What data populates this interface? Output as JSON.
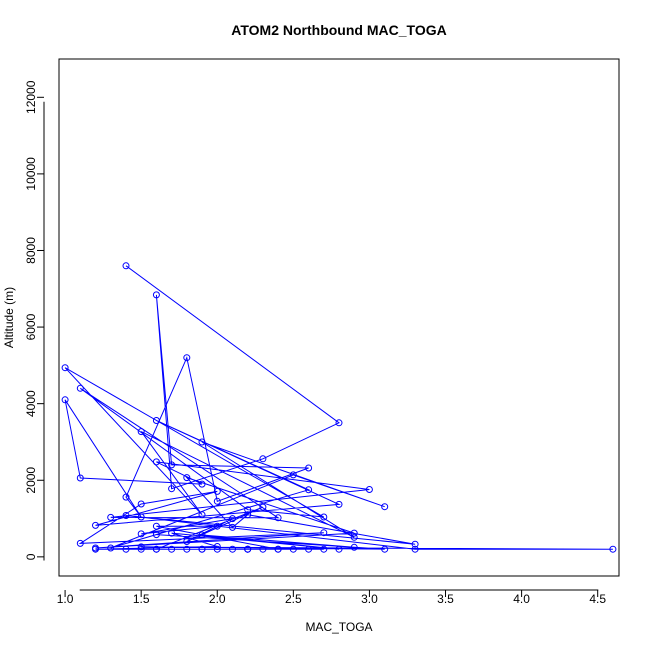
{
  "colors": {
    "series": "#0000ff",
    "axes": "#000000",
    "background": "#ffffff"
  },
  "chart_data": {
    "type": "scatter",
    "mode": "lines+markers",
    "marker": "open-circle",
    "title": "ATOM2 Northbound MAC_TOGA",
    "xlabel": "MAC_TOGA",
    "ylabel": "Altitude (m)",
    "xlim": [
      0.96,
      4.64
    ],
    "ylim": [
      -500,
      13000
    ],
    "xticks": [
      "1.0",
      "1.5",
      "2.0",
      "2.5",
      "3.0",
      "3.5",
      "4.0",
      "4.5"
    ],
    "yticks": [
      "0",
      "2000",
      "4000",
      "6000",
      "8000",
      "10000",
      "12000"
    ],
    "grid": false,
    "legend": "none",
    "series": [
      {
        "values": [
          [
            1.4,
            7600
          ],
          [
            2.8,
            3500
          ],
          [
            2.3,
            2560
          ],
          [
            1.7,
            1780
          ],
          [
            1.6,
            6840
          ],
          [
            1.7,
            2400
          ],
          [
            2.6,
            2320
          ],
          [
            2.0,
            1450
          ],
          [
            1.8,
            5200
          ],
          [
            1.4,
            1560
          ],
          [
            1.5,
            1040
          ],
          [
            1.0,
            4100
          ],
          [
            1.1,
            2060
          ],
          [
            1.9,
            1900
          ],
          [
            1.6,
            2480
          ],
          [
            3.0,
            1760
          ],
          [
            1.3,
            1030
          ],
          [
            2.4,
            1020
          ],
          [
            1.1,
            4400
          ],
          [
            2.2,
            1230
          ],
          [
            2.7,
            1040
          ],
          [
            1.0,
            4940
          ],
          [
            1.9,
            1100
          ],
          [
            1.5,
            3270
          ],
          [
            2.9,
            510
          ],
          [
            1.9,
            3000
          ],
          [
            3.1,
            1310
          ],
          [
            2.5,
            2140
          ],
          [
            1.3,
            230
          ],
          [
            2.6,
            1750
          ],
          [
            1.6,
            3560
          ],
          [
            2.8,
            1370
          ],
          [
            1.2,
            820
          ],
          [
            2.0,
            1710
          ],
          [
            1.5,
            1380
          ],
          [
            1.1,
            350
          ],
          [
            2.7,
            630
          ],
          [
            1.2,
            230
          ],
          [
            2.9,
            620
          ],
          [
            1.8,
            2070
          ],
          [
            2.1,
            770
          ],
          [
            2.2,
            1100
          ],
          [
            3.3,
            330
          ],
          [
            1.4,
            1080
          ],
          [
            3.3,
            200
          ],
          [
            4.6,
            200
          ],
          [
            1.5,
            260
          ],
          [
            3.1,
            200
          ],
          [
            1.6,
            580
          ],
          [
            2.9,
            250
          ],
          [
            1.9,
            570
          ],
          [
            2.8,
            200
          ],
          [
            1.7,
            620
          ],
          [
            2.0,
            270
          ],
          [
            1.2,
            200
          ],
          [
            2.1,
            200
          ],
          [
            1.4,
            200
          ],
          [
            2.7,
            200
          ],
          [
            1.6,
            200
          ],
          [
            2.4,
            200
          ],
          [
            1.8,
            200
          ],
          [
            2.6,
            200
          ],
          [
            2.2,
            200
          ],
          [
            1.5,
            200
          ],
          [
            2.5,
            200
          ],
          [
            2.0,
            200
          ],
          [
            2.3,
            200
          ],
          [
            1.9,
            200
          ],
          [
            2.2,
            200
          ],
          [
            1.7,
            200
          ],
          [
            2.4,
            200
          ],
          [
            1.6,
            800
          ],
          [
            2.0,
            800
          ],
          [
            1.5,
            600
          ],
          [
            2.1,
            1000
          ],
          [
            1.8,
            400
          ],
          [
            2.3,
            1300
          ],
          [
            1.6,
            200
          ],
          [
            2.2,
            200
          ],
          [
            1.9,
            200
          ]
        ]
      }
    ]
  }
}
